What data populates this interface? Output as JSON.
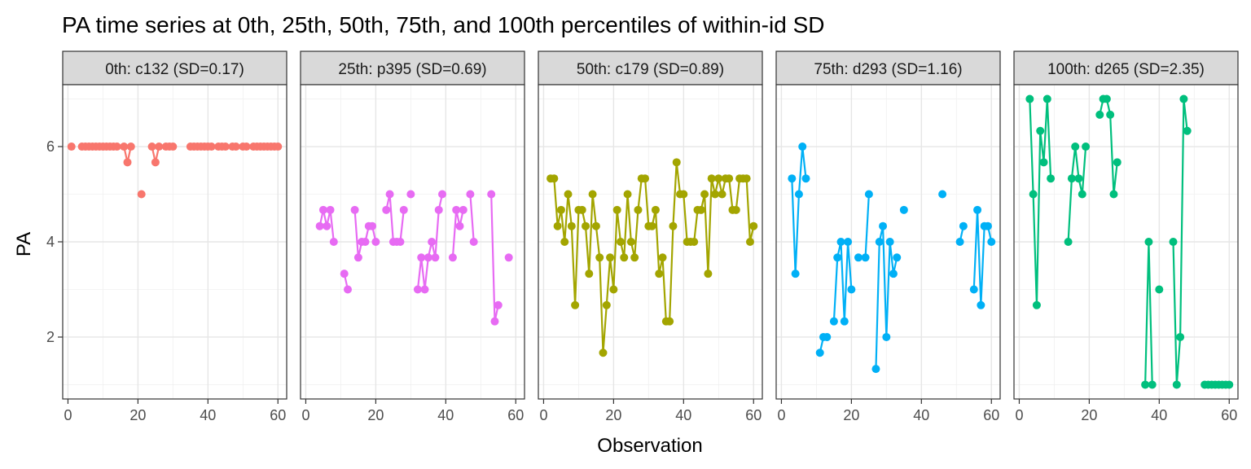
{
  "chart_data": {
    "type": "line",
    "title": "PA time series at 0th, 25th, 50th, 75th, and 100th percentiles of within-id SD",
    "xlabel": "Observation",
    "ylabel": "PA",
    "xlim": [
      -1.5,
      62.5
    ],
    "ylim": [
      0.7,
      7.3
    ],
    "xticks": [
      0,
      20,
      40,
      60
    ],
    "yticks": [
      2,
      4,
      6
    ],
    "grid": true,
    "markers": true,
    "panels": [
      {
        "label": "0th: c132 (SD=0.17)",
        "color": "#F8766D",
        "x": [
          1,
          2,
          3,
          4,
          5,
          6,
          7,
          8,
          9,
          10,
          11,
          12,
          13,
          14,
          15,
          16,
          17,
          18,
          19,
          20,
          21,
          22,
          23,
          24,
          25,
          26,
          27,
          28,
          29,
          30,
          31,
          32,
          33,
          34,
          35,
          36,
          37,
          38,
          39,
          40,
          41,
          42,
          43,
          44,
          45,
          46,
          47,
          48,
          49,
          50,
          51,
          52,
          53,
          54,
          55,
          56,
          57,
          58,
          59,
          60
        ],
        "y": [
          6,
          null,
          null,
          6,
          6,
          6,
          6,
          6,
          6,
          6,
          6,
          6,
          6,
          6,
          null,
          6,
          5.67,
          6,
          null,
          null,
          5,
          null,
          null,
          6,
          5.67,
          6,
          null,
          6,
          6,
          6,
          null,
          null,
          null,
          null,
          6,
          6,
          6,
          6,
          6,
          6,
          6,
          null,
          6,
          6,
          6,
          null,
          6,
          6,
          null,
          6,
          6,
          null,
          6,
          6,
          6,
          6,
          6,
          6,
          6,
          6
        ]
      },
      {
        "label": "25th: p395 (SD=0.69)",
        "color": "#E76BF3",
        "x": [
          1,
          2,
          3,
          4,
          5,
          6,
          7,
          8,
          9,
          10,
          11,
          12,
          13,
          14,
          15,
          16,
          17,
          18,
          19,
          20,
          21,
          22,
          23,
          24,
          25,
          26,
          27,
          28,
          29,
          30,
          31,
          32,
          33,
          34,
          35,
          36,
          37,
          38,
          39,
          40,
          41,
          42,
          43,
          44,
          45,
          46,
          47,
          48,
          49,
          50,
          51,
          52,
          53,
          54,
          55,
          56,
          57,
          58,
          59,
          60
        ],
        "y": [
          null,
          null,
          null,
          4.33,
          4.67,
          4.33,
          4.67,
          4,
          null,
          null,
          3.33,
          3,
          null,
          4.67,
          3.67,
          4,
          4,
          4.33,
          4.33,
          4,
          null,
          null,
          4.67,
          5,
          4,
          4,
          4,
          4.67,
          null,
          5,
          null,
          3,
          3.67,
          3,
          3.67,
          4,
          3.67,
          4.67,
          5,
          null,
          null,
          3.67,
          4.67,
          4.33,
          4.67,
          null,
          5,
          4,
          null,
          null,
          null,
          null,
          5,
          2.33,
          2.67,
          null,
          null,
          3.67,
          null,
          null
        ]
      },
      {
        "label": "50th: c179 (SD=0.89)",
        "color": "#A3A500",
        "x": [
          1,
          2,
          3,
          4,
          5,
          6,
          7,
          8,
          9,
          10,
          11,
          12,
          13,
          14,
          15,
          16,
          17,
          18,
          19,
          20,
          21,
          22,
          23,
          24,
          25,
          26,
          27,
          28,
          29,
          30,
          31,
          32,
          33,
          34,
          35,
          36,
          37,
          38,
          39,
          40,
          41,
          42,
          43,
          44,
          45,
          46,
          47,
          48,
          49,
          50,
          51,
          52,
          53,
          54,
          55,
          56,
          57,
          58,
          59,
          60
        ],
        "y": [
          null,
          5.33,
          5.33,
          4.33,
          4.67,
          4,
          5,
          4.33,
          2.67,
          4.67,
          4.67,
          4.33,
          3.33,
          5,
          4.33,
          3.67,
          1.67,
          2.67,
          3.67,
          3,
          4.67,
          4,
          3.67,
          5,
          4,
          3.67,
          4.67,
          5.33,
          5.33,
          4.33,
          4.33,
          4.67,
          3.33,
          3.67,
          2.33,
          2.33,
          4.33,
          5.67,
          5,
          5,
          4,
          4,
          4,
          4.67,
          4.67,
          5,
          3.33,
          5.33,
          5,
          5.33,
          5,
          5.33,
          5.33,
          4.67,
          4.67,
          5.33,
          5.33,
          5.33,
          4,
          4.33
        ]
      },
      {
        "label": "75th: d293 (SD=1.16)",
        "color": "#00B0F6",
        "x": [
          1,
          2,
          3,
          4,
          5,
          6,
          7,
          8,
          9,
          10,
          11,
          12,
          13,
          14,
          15,
          16,
          17,
          18,
          19,
          20,
          21,
          22,
          23,
          24,
          25,
          26,
          27,
          28,
          29,
          30,
          31,
          32,
          33,
          34,
          35,
          36,
          37,
          38,
          39,
          40,
          41,
          42,
          43,
          44,
          45,
          46,
          47,
          48,
          49,
          50,
          51,
          52,
          53,
          54,
          55,
          56,
          57,
          58,
          59,
          60
        ],
        "y": [
          null,
          null,
          5.33,
          3.33,
          5,
          6,
          5.33,
          null,
          null,
          null,
          1.67,
          2,
          2,
          null,
          2.33,
          3.67,
          4,
          2.33,
          4,
          3,
          null,
          3.67,
          null,
          3.67,
          5,
          null,
          1.33,
          4,
          4.33,
          2,
          4,
          3.33,
          3.67,
          null,
          4.67,
          null,
          null,
          null,
          null,
          null,
          null,
          null,
          null,
          null,
          null,
          5,
          null,
          null,
          null,
          null,
          4,
          4.33,
          null,
          null,
          3,
          4.67,
          2.67,
          4.33,
          4.33,
          4
        ]
      },
      {
        "label": "100th: d265 (SD=2.35)",
        "color": "#00BF7D",
        "x": [
          1,
          2,
          3,
          4,
          5,
          6,
          7,
          8,
          9,
          10,
          11,
          12,
          13,
          14,
          15,
          16,
          17,
          18,
          19,
          20,
          21,
          22,
          23,
          24,
          25,
          26,
          27,
          28,
          29,
          30,
          31,
          32,
          33,
          34,
          35,
          36,
          37,
          38,
          39,
          40,
          41,
          42,
          43,
          44,
          45,
          46,
          47,
          48,
          49,
          50,
          51,
          52,
          53,
          54,
          55,
          56,
          57,
          58,
          59,
          60
        ],
        "y": [
          null,
          null,
          7,
          5,
          2.67,
          6.33,
          5.67,
          7,
          5.33,
          null,
          null,
          null,
          null,
          4,
          5.33,
          6,
          5.33,
          5,
          6,
          null,
          null,
          null,
          6.67,
          7,
          7,
          6.67,
          5,
          5.67,
          null,
          null,
          null,
          null,
          null,
          null,
          null,
          1,
          4,
          1,
          null,
          3,
          null,
          null,
          null,
          4,
          1,
          2,
          7,
          6.33,
          null,
          null,
          null,
          null,
          1,
          1,
          1,
          1,
          1,
          1,
          1,
          1
        ]
      }
    ]
  }
}
